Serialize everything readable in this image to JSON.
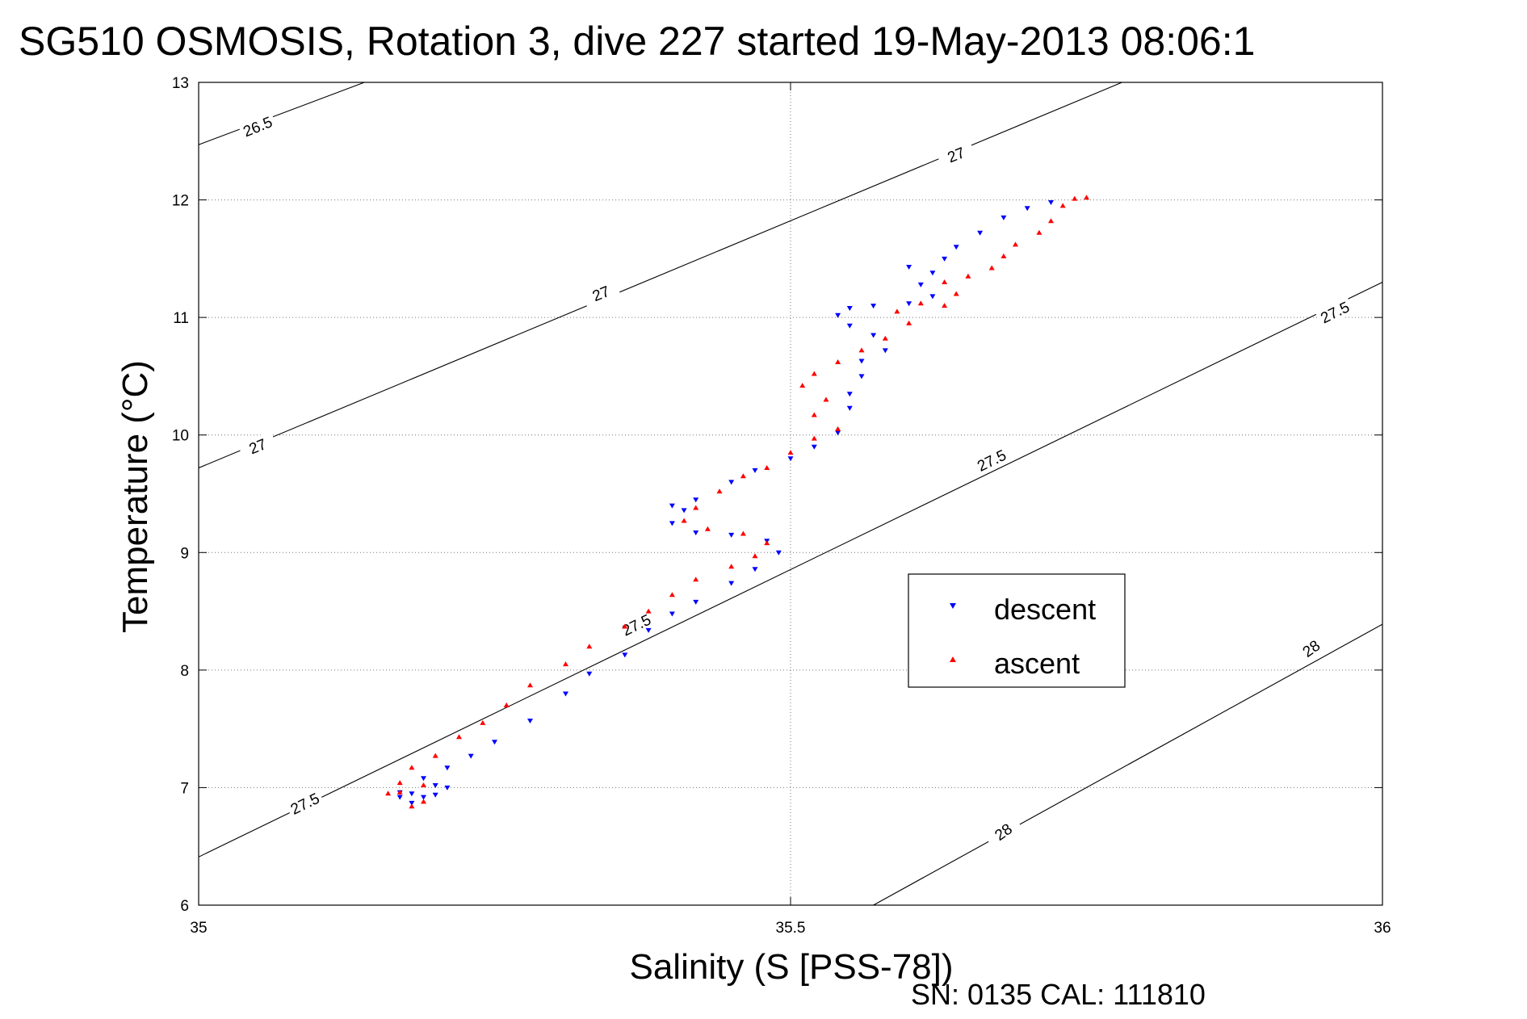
{
  "chart_data": {
    "type": "scatter",
    "title": "SG510 OSMOSIS, Rotation 3, dive 227 started 19-May-2013 08:06:1",
    "xlabel": "Salinity (S [PSS-78])",
    "ylabel": "Temperature (°C)",
    "xlim": [
      35,
      36
    ],
    "ylim": [
      6,
      13
    ],
    "x_ticks": [
      "35",
      "35.5",
      "36"
    ],
    "y_ticks": [
      "6",
      "7",
      "8",
      "9",
      "10",
      "11",
      "12",
      "13"
    ],
    "grid": true,
    "legend_position": "right-center",
    "footer": "SN: 0135  CAL: 111810",
    "contours": [
      {
        "label": "26.5",
        "points": [
          [
            35.0,
            12.47
          ],
          [
            35.14,
            13.0
          ]
        ]
      },
      {
        "label": "27",
        "points": [
          [
            35.0,
            9.72
          ],
          [
            35.78,
            13.0
          ]
        ]
      },
      {
        "label": "27.5",
        "points": [
          [
            35.0,
            6.41
          ],
          [
            36.0,
            11.3
          ]
        ]
      },
      {
        "label": "28",
        "points": [
          [
            35.57,
            6.0
          ],
          [
            36.0,
            8.39
          ]
        ]
      }
    ],
    "contour_labels": [
      {
        "text": "26.5",
        "at": [
          35.05,
          12.62
        ],
        "angle": -22
      },
      {
        "text": "27",
        "at": [
          35.05,
          9.9
        ],
        "angle": -22
      },
      {
        "text": "27",
        "at": [
          35.34,
          11.2
        ],
        "angle": -22
      },
      {
        "text": "27",
        "at": [
          35.64,
          12.38
        ],
        "angle": -22
      },
      {
        "text": "27.5",
        "at": [
          35.09,
          6.86
        ],
        "angle": -26
      },
      {
        "text": "27.5",
        "at": [
          35.37,
          8.38
        ],
        "angle": -26
      },
      {
        "text": "27.5",
        "at": [
          35.67,
          9.78
        ],
        "angle": -26
      },
      {
        "text": "27.5",
        "at": [
          35.96,
          11.04
        ],
        "angle": -26
      },
      {
        "text": "28",
        "at": [
          35.68,
          6.62
        ],
        "angle": -35
      },
      {
        "text": "28",
        "at": [
          35.94,
          8.18
        ],
        "angle": -35
      }
    ],
    "series": [
      {
        "name": "descent",
        "color": "#0000ff",
        "marker": "triangle-down",
        "points": [
          [
            35.18,
            6.87
          ],
          [
            35.19,
            6.92
          ],
          [
            35.2,
            6.94
          ],
          [
            35.21,
            7.0
          ],
          [
            35.2,
            7.02
          ],
          [
            35.18,
            6.95
          ],
          [
            35.17,
            6.92
          ],
          [
            35.17,
            6.96
          ],
          [
            35.19,
            7.08
          ],
          [
            35.21,
            7.17
          ],
          [
            35.23,
            7.27
          ],
          [
            35.25,
            7.39
          ],
          [
            35.28,
            7.57
          ],
          [
            35.31,
            7.8
          ],
          [
            35.33,
            7.97
          ],
          [
            35.36,
            8.13
          ],
          [
            35.38,
            8.34
          ],
          [
            35.4,
            8.48
          ],
          [
            35.42,
            8.58
          ],
          [
            35.45,
            8.74
          ],
          [
            35.47,
            8.86
          ],
          [
            35.49,
            9.0
          ],
          [
            35.48,
            9.1
          ],
          [
            35.45,
            9.15
          ],
          [
            35.42,
            9.17
          ],
          [
            35.4,
            9.25
          ],
          [
            35.41,
            9.36
          ],
          [
            35.4,
            9.4
          ],
          [
            35.42,
            9.45
          ],
          [
            35.45,
            9.6
          ],
          [
            35.47,
            9.7
          ],
          [
            35.5,
            9.8
          ],
          [
            35.52,
            9.9
          ],
          [
            35.54,
            10.02
          ],
          [
            35.55,
            10.23
          ],
          [
            35.55,
            10.35
          ],
          [
            35.56,
            10.5
          ],
          [
            35.56,
            10.63
          ],
          [
            35.58,
            10.72
          ],
          [
            35.57,
            10.85
          ],
          [
            35.55,
            10.93
          ],
          [
            35.54,
            11.02
          ],
          [
            35.55,
            11.08
          ],
          [
            35.57,
            11.1
          ],
          [
            35.6,
            11.12
          ],
          [
            35.62,
            11.18
          ],
          [
            35.61,
            11.28
          ],
          [
            35.62,
            11.38
          ],
          [
            35.6,
            11.43
          ],
          [
            35.63,
            11.5
          ],
          [
            35.64,
            11.6
          ],
          [
            35.66,
            11.72
          ],
          [
            35.68,
            11.85
          ],
          [
            35.7,
            11.93
          ],
          [
            35.72,
            11.98
          ]
        ]
      },
      {
        "name": "ascent",
        "color": "#ff0000",
        "marker": "triangle-up",
        "points": [
          [
            35.18,
            6.84
          ],
          [
            35.19,
            6.88
          ],
          [
            35.17,
            6.96
          ],
          [
            35.19,
            7.02
          ],
          [
            35.17,
            7.04
          ],
          [
            35.16,
            6.95
          ],
          [
            35.18,
            7.17
          ],
          [
            35.2,
            7.27
          ],
          [
            35.22,
            7.43
          ],
          [
            35.24,
            7.55
          ],
          [
            35.26,
            7.7
          ],
          [
            35.28,
            7.87
          ],
          [
            35.31,
            8.05
          ],
          [
            35.33,
            8.2
          ],
          [
            35.36,
            8.37
          ],
          [
            35.38,
            8.5
          ],
          [
            35.4,
            8.64
          ],
          [
            35.42,
            8.77
          ],
          [
            35.45,
            8.88
          ],
          [
            35.47,
            8.97
          ],
          [
            35.48,
            9.08
          ],
          [
            35.46,
            9.16
          ],
          [
            35.43,
            9.2
          ],
          [
            35.41,
            9.27
          ],
          [
            35.42,
            9.38
          ],
          [
            35.44,
            9.52
          ],
          [
            35.46,
            9.65
          ],
          [
            35.48,
            9.72
          ],
          [
            35.5,
            9.85
          ],
          [
            35.52,
            9.97
          ],
          [
            35.54,
            10.05
          ],
          [
            35.52,
            10.17
          ],
          [
            35.53,
            10.3
          ],
          [
            35.51,
            10.42
          ],
          [
            35.52,
            10.52
          ],
          [
            35.54,
            10.62
          ],
          [
            35.56,
            10.72
          ],
          [
            35.58,
            10.82
          ],
          [
            35.6,
            10.95
          ],
          [
            35.59,
            11.05
          ],
          [
            35.61,
            11.12
          ],
          [
            35.63,
            11.1
          ],
          [
            35.64,
            11.2
          ],
          [
            35.63,
            11.3
          ],
          [
            35.65,
            11.35
          ],
          [
            35.67,
            11.42
          ],
          [
            35.68,
            11.52
          ],
          [
            35.69,
            11.62
          ],
          [
            35.71,
            11.72
          ],
          [
            35.72,
            11.82
          ],
          [
            35.73,
            11.95
          ],
          [
            35.74,
            12.01
          ],
          [
            35.75,
            12.02
          ]
        ]
      }
    ]
  }
}
